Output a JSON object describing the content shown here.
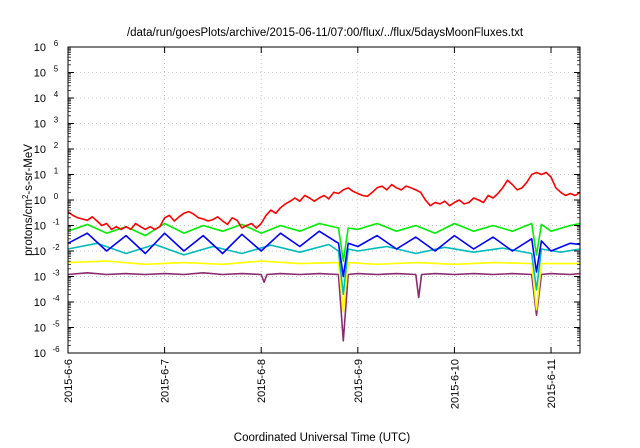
{
  "chart_data": {
    "type": "line",
    "title": "/data/run/goesPlots/archive/2015-06-11/07:00/flux/../flux/5daysMoonFluxes.txt",
    "xlabel": "Coordinated Universal Time (UTC)",
    "ylabel": {
      "before": "protons/cm",
      "sup": "2",
      "after": "-s-sr-MeV"
    },
    "x_ticks": [
      "2015-6-6",
      "2015-6-7",
      "2015-6-8",
      "2015-6-9",
      "2015-6-10",
      "2015-6-11"
    ],
    "xlim_days": [
      0,
      5.3
    ],
    "y_scale": "log",
    "ylim": [
      1e-06,
      1000000.0
    ],
    "y_ticks": [
      {
        "base": "10",
        "exp": "-6",
        "value": 1e-06
      },
      {
        "base": "10",
        "exp": "-5",
        "value": 1e-05
      },
      {
        "base": "10",
        "exp": "-4",
        "value": 0.0001
      },
      {
        "base": "10",
        "exp": "-3",
        "value": 0.001
      },
      {
        "base": "10",
        "exp": "-2",
        "value": 0.01
      },
      {
        "base": "10",
        "exp": "-1",
        "value": 0.1
      },
      {
        "base": "10",
        "exp": "0",
        "value": 1
      },
      {
        "base": "10",
        "exp": "1",
        "value": 10
      },
      {
        "base": "10",
        "exp": "2",
        "value": 100
      },
      {
        "base": "10",
        "exp": "3",
        "value": 1000
      },
      {
        "base": "10",
        "exp": "4",
        "value": 10000
      },
      {
        "base": "10",
        "exp": "5",
        "value": 100000
      },
      {
        "base": "10",
        "exp": "6",
        "value": 1000000
      }
    ],
    "grid": "dotted",
    "legend": "none",
    "series": [
      {
        "color": "#ff0000",
        "x": [
          0,
          0.05,
          0.1,
          0.15,
          0.2,
          0.25,
          0.3,
          0.35,
          0.4,
          0.45,
          0.5,
          0.55,
          0.6,
          0.65,
          0.7,
          0.75,
          0.8,
          0.85,
          0.9,
          0.95,
          1.0,
          1.05,
          1.1,
          1.15,
          1.2,
          1.25,
          1.3,
          1.35,
          1.4,
          1.45,
          1.5,
          1.55,
          1.6,
          1.65,
          1.7,
          1.75,
          1.8,
          1.85,
          1.9,
          1.95,
          2.0,
          2.05,
          2.1,
          2.15,
          2.2,
          2.25,
          2.3,
          2.35,
          2.4,
          2.45,
          2.5,
          2.55,
          2.6,
          2.65,
          2.7,
          2.75,
          2.8,
          2.85,
          2.9,
          2.95,
          3.0,
          3.05,
          3.1,
          3.15,
          3.2,
          3.25,
          3.3,
          3.35,
          3.4,
          3.45,
          3.5,
          3.55,
          3.6,
          3.65,
          3.7,
          3.75,
          3.8,
          3.85,
          3.9,
          3.95,
          4.0,
          4.05,
          4.1,
          4.15,
          4.2,
          4.25,
          4.3,
          4.35,
          4.4,
          4.45,
          4.5,
          4.55,
          4.6,
          4.65,
          4.7,
          4.75,
          4.8,
          4.85,
          4.9,
          4.95,
          5.0,
          5.05,
          5.1,
          5.15,
          5.2,
          5.25,
          5.3
        ],
        "y": [
          0.35,
          0.25,
          0.2,
          0.18,
          0.16,
          0.22,
          0.15,
          0.1,
          0.12,
          0.07,
          0.09,
          0.07,
          0.09,
          0.07,
          0.12,
          0.09,
          0.07,
          0.09,
          0.07,
          0.09,
          0.2,
          0.25,
          0.15,
          0.22,
          0.3,
          0.35,
          0.28,
          0.2,
          0.18,
          0.15,
          0.17,
          0.22,
          0.15,
          0.11,
          0.2,
          0.16,
          0.08,
          0.1,
          0.12,
          0.08,
          0.12,
          0.25,
          0.4,
          0.3,
          0.5,
          0.7,
          0.9,
          1.2,
          0.9,
          1.5,
          1.2,
          0.9,
          1.2,
          1.5,
          1.1,
          2.0,
          1.8,
          2.5,
          3.0,
          2.2,
          1.8,
          1.5,
          1.4,
          2.0,
          3.0,
          3.5,
          2.5,
          4.0,
          3.0,
          2.5,
          3.5,
          3.0,
          2.5,
          2.0,
          1.0,
          0.6,
          0.8,
          0.7,
          0.9,
          0.6,
          0.8,
          1.0,
          0.7,
          0.8,
          1.2,
          1.0,
          0.8,
          1.5,
          1.2,
          1.8,
          3.0,
          6.0,
          4.0,
          2.5,
          3.0,
          5.0,
          10,
          12,
          10,
          12,
          8,
          3.0,
          2.0,
          1.5,
          1.8,
          1.5,
          2.0
        ]
      },
      {
        "color": "#00ee00",
        "x": [
          0,
          0.2,
          0.4,
          0.6,
          0.8,
          1.0,
          1.2,
          1.4,
          1.6,
          1.8,
          2.0,
          2.2,
          2.4,
          2.6,
          2.8,
          2.85,
          2.9,
          3.0,
          3.2,
          3.4,
          3.6,
          3.8,
          4.0,
          4.2,
          4.4,
          4.6,
          4.8,
          4.85,
          4.9,
          5.0,
          5.2,
          5.3
        ],
        "y": [
          0.06,
          0.11,
          0.05,
          0.09,
          0.04,
          0.12,
          0.05,
          0.1,
          0.06,
          0.11,
          0.05,
          0.1,
          0.06,
          0.12,
          0.08,
          0.004,
          0.08,
          0.07,
          0.12,
          0.06,
          0.1,
          0.05,
          0.12,
          0.06,
          0.1,
          0.06,
          0.12,
          0.007,
          0.11,
          0.06,
          0.1,
          0.12
        ]
      },
      {
        "color": "#0000ff",
        "x": [
          0,
          0.2,
          0.4,
          0.6,
          0.8,
          1.0,
          1.2,
          1.4,
          1.6,
          1.8,
          2.0,
          2.2,
          2.4,
          2.6,
          2.8,
          2.85,
          2.9,
          3.0,
          3.2,
          3.4,
          3.6,
          3.8,
          4.0,
          4.2,
          4.4,
          4.6,
          4.8,
          4.85,
          4.9,
          5.0,
          5.2,
          5.3
        ],
        "y": [
          0.02,
          0.05,
          0.01,
          0.04,
          0.008,
          0.05,
          0.01,
          0.04,
          0.008,
          0.045,
          0.01,
          0.05,
          0.015,
          0.06,
          0.02,
          0.001,
          0.02,
          0.015,
          0.04,
          0.012,
          0.035,
          0.01,
          0.04,
          0.012,
          0.035,
          0.01,
          0.03,
          0.0015,
          0.025,
          0.01,
          0.02,
          0.018
        ]
      },
      {
        "color": "#00bbbb",
        "x": [
          0,
          0.3,
          0.6,
          0.9,
          1.2,
          1.5,
          1.8,
          2.1,
          2.4,
          2.7,
          2.8,
          2.85,
          2.9,
          3.0,
          3.3,
          3.6,
          3.9,
          4.2,
          4.5,
          4.8,
          4.85,
          4.9,
          5.1,
          5.3
        ],
        "y": [
          0.012,
          0.02,
          0.008,
          0.018,
          0.007,
          0.015,
          0.008,
          0.017,
          0.009,
          0.018,
          0.01,
          0.0002,
          0.012,
          0.01,
          0.015,
          0.008,
          0.014,
          0.009,
          0.013,
          0.008,
          0.0003,
          0.012,
          0.009,
          0.012
        ]
      },
      {
        "color": "#ffff00",
        "x": [
          0,
          0.4,
          0.8,
          1.2,
          1.6,
          2.0,
          2.4,
          2.8,
          2.85,
          2.9,
          3.2,
          3.6,
          4.0,
          4.4,
          4.8,
          4.85,
          4.9,
          5.3
        ],
        "y": [
          0.0035,
          0.004,
          0.003,
          0.0035,
          0.003,
          0.004,
          0.0032,
          0.0035,
          4e-05,
          0.0035,
          0.003,
          0.0035,
          0.003,
          0.0035,
          0.0032,
          5e-05,
          0.0032,
          0.0032
        ]
      },
      {
        "color": "#8b2a6e",
        "x": [
          0,
          0.2,
          0.4,
          0.6,
          0.8,
          1.0,
          1.2,
          1.4,
          1.6,
          1.8,
          2.0,
          2.03,
          2.06,
          2.2,
          2.4,
          2.6,
          2.8,
          2.85,
          2.9,
          3.0,
          3.2,
          3.4,
          3.6,
          3.63,
          3.66,
          3.8,
          4.0,
          4.2,
          4.4,
          4.6,
          4.8,
          4.85,
          4.9,
          5.0,
          5.2,
          5.3
        ],
        "y": [
          0.0012,
          0.0014,
          0.0012,
          0.0013,
          0.0012,
          0.0013,
          0.0012,
          0.0014,
          0.0012,
          0.0013,
          0.0012,
          0.0006,
          0.0012,
          0.0013,
          0.0012,
          0.0013,
          0.0012,
          3e-06,
          0.0012,
          0.0013,
          0.0012,
          0.0013,
          0.0012,
          0.00015,
          0.0012,
          0.0013,
          0.0012,
          0.0013,
          0.0012,
          0.0013,
          0.0012,
          3e-05,
          0.0012,
          0.0013,
          0.0012,
          0.0013
        ]
      }
    ]
  }
}
